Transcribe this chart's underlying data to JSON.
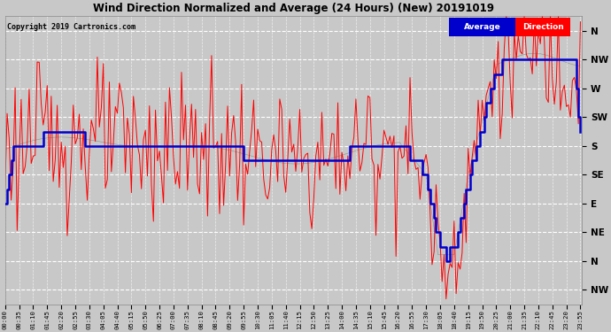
{
  "title": "Wind Direction Normalized and Average (24 Hours) (New) 20191019",
  "copyright": "Copyright 2019 Cartronics.com",
  "background_color": "#c8c8c8",
  "plot_bg_color": "#c8c8c8",
  "grid_color": "#ffffff",
  "ytick_labels": [
    "NW",
    "N",
    "NE",
    "E",
    "SE",
    "S",
    "SW",
    "W",
    "NW",
    "N"
  ],
  "ytick_values": [
    -45,
    0,
    45,
    90,
    135,
    180,
    225,
    270,
    315,
    360
  ],
  "ylim": [
    -68,
    383
  ],
  "legend_avg_color": "#0000cc",
  "legend_dir_color": "#ff0000",
  "legend_avg_label": "Average",
  "legend_dir_label": "Direction",
  "figsize": [
    6.9,
    3.75
  ],
  "dpi": 100
}
